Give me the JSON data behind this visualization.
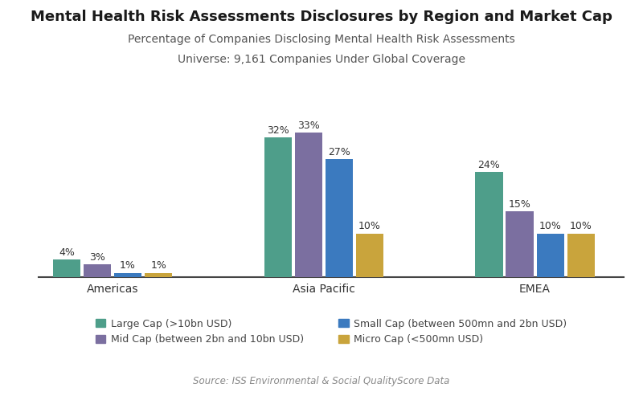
{
  "title": "Mental Health Risk Assessments Disclosures by Region and Market Cap",
  "subtitle1": "Percentage of Companies Disclosing Mental Health Risk Assessments",
  "subtitle2": "Universe: 9,161 Companies Under Global Coverage",
  "source": "Source: ISS Environmental & Social QualityScore Data",
  "regions": [
    "Americas",
    "Asia Pacific",
    "EMEA"
  ],
  "categories": [
    "Large Cap (>10bn USD)",
    "Mid Cap (between 2bn and 10bn USD)",
    "Small Cap (between 500mn and 2bn USD)",
    "Micro Cap (<500mn USD)"
  ],
  "values": {
    "Americas": [
      4,
      3,
      1,
      1
    ],
    "Asia Pacific": [
      32,
      33,
      27,
      10
    ],
    "EMEA": [
      24,
      15,
      10,
      10
    ]
  },
  "colors": [
    "#4e9e8a",
    "#7b6fa0",
    "#3b7abf",
    "#c9a43c"
  ],
  "bar_width": 0.13,
  "ylim": [
    0,
    38
  ],
  "bg_color": "#ffffff",
  "title_fontsize": 13,
  "subtitle_fontsize": 10,
  "label_fontsize": 9,
  "tick_fontsize": 10,
  "legend_fontsize": 9,
  "source_fontsize": 8.5
}
